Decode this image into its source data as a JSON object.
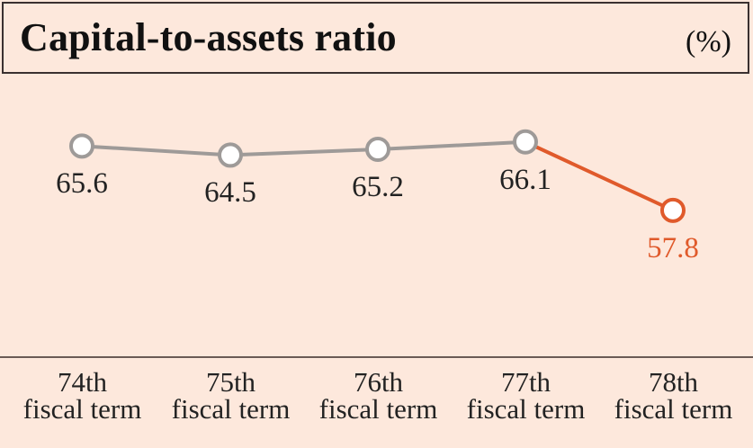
{
  "chart_data": {
    "type": "line",
    "title": "Capital-to-assets ratio",
    "unit": "(%)",
    "categories": [
      [
        "74th",
        "fiscal term"
      ],
      [
        "75th",
        "fiscal term"
      ],
      [
        "76th",
        "fiscal term"
      ],
      [
        "77th",
        "fiscal term"
      ],
      [
        "78th",
        "fiscal term"
      ]
    ],
    "values": [
      65.6,
      64.5,
      65.2,
      66.1,
      57.8
    ],
    "value_labels": [
      "65.6",
      "64.5",
      "65.2",
      "66.1",
      "57.8"
    ],
    "ylim": [
      40,
      70
    ],
    "grid": false,
    "colors": {
      "line": "#9e9a98",
      "highlight": "#e05a2b",
      "marker_fill": "#ffffff",
      "background": "#fde8dc"
    },
    "highlight_index": 4
  }
}
